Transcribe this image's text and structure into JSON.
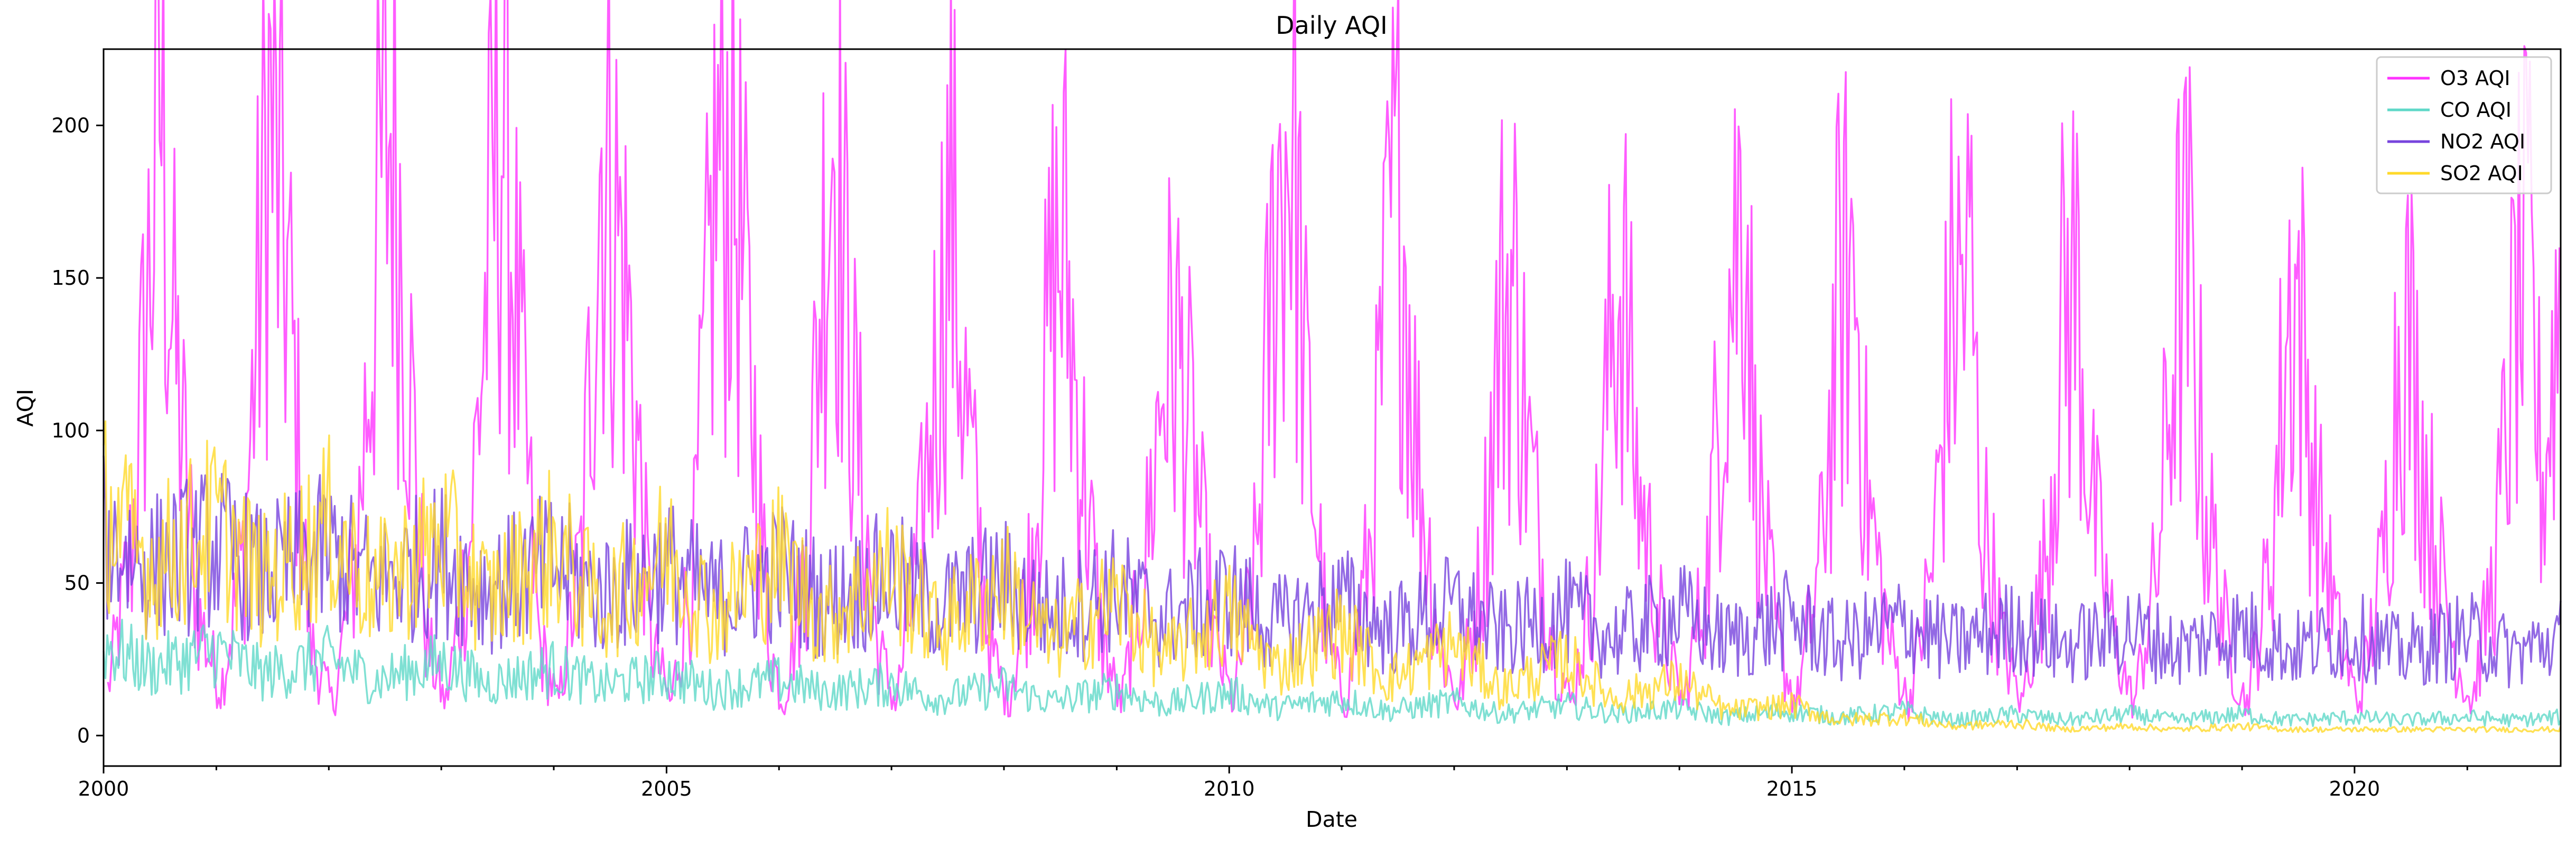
{
  "chart_data": {
    "type": "line",
    "title": "Daily AQI",
    "xlabel": "Date",
    "ylabel": "AQI",
    "xlim": [
      "2000-01-01",
      "2021-10-31"
    ],
    "ylim": [
      -10,
      225
    ],
    "x_ticks": [
      "2000",
      "2005",
      "2010",
      "2015",
      "2020"
    ],
    "y_ticks": [
      "0",
      "50",
      "100",
      "150",
      "200"
    ],
    "legend_position": "top-right",
    "grid": false,
    "series": [
      {
        "name": "O3 AQI",
        "color": "#ff33ff",
        "x": [
          "2000-01-15",
          "2000-04-01",
          "2000-06-10",
          "2000-07-01",
          "2000-08-15",
          "2000-11-01",
          "2001-01-15",
          "2001-04-01",
          "2001-06-20",
          "2001-07-15",
          "2001-08-20",
          "2001-11-01",
          "2002-01-15",
          "2002-04-01",
          "2002-06-15",
          "2002-07-25",
          "2002-09-01",
          "2002-11-15",
          "2003-01-15",
          "2003-04-01",
          "2003-06-20",
          "2003-07-20",
          "2003-09-01",
          "2003-11-15",
          "2004-01-15",
          "2004-04-01",
          "2004-06-01",
          "2004-07-15",
          "2004-09-01",
          "2004-11-15",
          "2005-01-15",
          "2005-04-01",
          "2005-06-10",
          "2005-08-01",
          "2005-09-15",
          "2005-12-01",
          "2006-01-15",
          "2006-04-01",
          "2006-06-01",
          "2006-06-25",
          "2006-09-01",
          "2006-11-15",
          "2007-01-15",
          "2007-04-01",
          "2007-06-15",
          "2007-07-10",
          "2007-09-01",
          "2007-11-15",
          "2008-01-15",
          "2008-04-01",
          "2008-06-10",
          "2008-07-15",
          "2008-09-01",
          "2008-11-15",
          "2009-01-15",
          "2009-04-01",
          "2009-06-01",
          "2009-07-15",
          "2009-09-01",
          "2009-11-15",
          "2010-01-15",
          "2010-04-01",
          "2010-06-01",
          "2010-07-25",
          "2010-09-01",
          "2010-11-15",
          "2011-01-15",
          "2011-04-01",
          "2011-06-10",
          "2011-07-15",
          "2011-09-01",
          "2011-11-15",
          "2012-01-15",
          "2012-04-01",
          "2012-06-01",
          "2012-07-15",
          "2012-09-01",
          "2012-11-15",
          "2013-01-15",
          "2013-04-01",
          "2013-06-01",
          "2013-07-01",
          "2013-08-15",
          "2013-11-15",
          "2014-01-15",
          "2014-04-01",
          "2014-06-01",
          "2014-08-05",
          "2014-09-01",
          "2014-11-15",
          "2015-01-15",
          "2015-04-01",
          "2015-06-01",
          "2015-07-25",
          "2015-09-01",
          "2015-11-15",
          "2016-01-15",
          "2016-04-01",
          "2016-06-01",
          "2016-08-05",
          "2016-09-01",
          "2016-11-15",
          "2017-01-15",
          "2017-04-01",
          "2017-06-01",
          "2017-07-15",
          "2017-09-01",
          "2017-11-15",
          "2018-01-15",
          "2018-04-01",
          "2018-06-01",
          "2018-07-15",
          "2018-09-01",
          "2018-11-15",
          "2019-01-15",
          "2019-04-01",
          "2019-06-01",
          "2019-07-01",
          "2019-09-01",
          "2019-11-15",
          "2020-01-15",
          "2020-04-01",
          "2020-06-01",
          "2020-07-10",
          "2020-09-01",
          "2020-11-15",
          "2021-01-15",
          "2021-04-01",
          "2021-06-10",
          "2021-07-20",
          "2021-09-01",
          "2021-10-31"
        ],
        "y": [
          15,
          60,
          172,
          214,
          130,
          40,
          15,
          60,
          205,
          180,
          150,
          30,
          10,
          60,
          175,
          205,
          150,
          30,
          10,
          60,
          180,
          209,
          140,
          30,
          10,
          60,
          195,
          175,
          135,
          30,
          10,
          60,
          185,
          190,
          140,
          30,
          10,
          60,
          175,
          208,
          110,
          30,
          10,
          60,
          145,
          179,
          105,
          30,
          10,
          60,
          150,
          160,
          100,
          30,
          10,
          55,
          120,
          128,
          95,
          30,
          10,
          60,
          170,
          208,
          120,
          30,
          10,
          60,
          165,
          177,
          95,
          30,
          10,
          55,
          140,
          147,
          90,
          30,
          10,
          55,
          140,
          152,
          85,
          30,
          10,
          55,
          140,
          187,
          90,
          30,
          10,
          55,
          140,
          155,
          80,
          30,
          10,
          55,
          140,
          152,
          80,
          30,
          10,
          55,
          140,
          150,
          75,
          30,
          10,
          55,
          140,
          151,
          80,
          30,
          10,
          55,
          140,
          145,
          75,
          30,
          10,
          55,
          140,
          121,
          75,
          30,
          10,
          55,
          140,
          150,
          80,
          150
        ]
      },
      {
        "name": "CO AQI",
        "color": "#5fd8c8",
        "x": [
          "2000-01-01",
          "2000-06-01",
          "2001-01-01",
          "2001-06-01",
          "2002-01-01",
          "2002-06-01",
          "2003-01-01",
          "2003-06-01",
          "2004-01-01",
          "2004-06-01",
          "2005-01-01",
          "2005-06-01",
          "2006-01-01",
          "2006-06-01",
          "2007-01-01",
          "2007-06-01",
          "2008-01-01",
          "2008-06-01",
          "2009-01-01",
          "2009-06-01",
          "2010-01-01",
          "2010-06-01",
          "2011-01-01",
          "2011-06-01",
          "2012-01-01",
          "2012-06-01",
          "2013-01-01",
          "2013-06-01",
          "2014-01-01",
          "2014-06-01",
          "2015-01-01",
          "2015-06-01",
          "2016-01-01",
          "2016-06-01",
          "2017-01-01",
          "2017-06-01",
          "2018-01-01",
          "2018-06-01",
          "2019-01-01",
          "2019-06-01",
          "2020-01-01",
          "2020-06-01",
          "2021-01-01",
          "2021-06-01",
          "2021-10-31"
        ],
        "y": [
          30,
          22,
          28,
          20,
          25,
          18,
          24,
          17,
          22,
          16,
          20,
          15,
          18,
          14,
          17,
          12,
          16,
          11,
          15,
          10,
          14,
          9,
          12,
          8,
          11,
          7,
          10,
          7,
          9,
          6,
          8,
          6,
          8,
          5,
          7,
          5,
          7,
          5,
          7,
          5,
          6,
          5,
          6,
          5,
          6
        ]
      },
      {
        "name": "NO2 AQI",
        "color": "#7744dd",
        "x": [
          "2000-01-01",
          "2000-06-01",
          "2001-01-01",
          "2001-06-01",
          "2002-01-01",
          "2002-06-01",
          "2003-01-01",
          "2003-06-01",
          "2004-01-01",
          "2004-06-01",
          "2005-01-01",
          "2005-06-01",
          "2006-01-01",
          "2006-06-01",
          "2007-01-01",
          "2007-06-01",
          "2008-01-01",
          "2008-06-01",
          "2009-01-01",
          "2009-06-01",
          "2010-01-01",
          "2010-06-01",
          "2011-01-01",
          "2011-06-01",
          "2012-01-01",
          "2012-06-01",
          "2013-01-01",
          "2013-06-01",
          "2014-01-01",
          "2014-06-01",
          "2015-01-01",
          "2015-06-01",
          "2016-01-01",
          "2016-06-01",
          "2017-01-01",
          "2017-06-01",
          "2018-01-01",
          "2018-06-01",
          "2019-01-01",
          "2019-06-01",
          "2020-01-01",
          "2020-06-01",
          "2021-01-01",
          "2021-06-01",
          "2021-10-31"
        ],
        "y": [
          65,
          55,
          62,
          52,
          60,
          50,
          58,
          48,
          56,
          46,
          55,
          45,
          54,
          44,
          52,
          42,
          50,
          40,
          48,
          38,
          46,
          36,
          44,
          34,
          42,
          33,
          40,
          32,
          40,
          31,
          38,
          30,
          37,
          30,
          36,
          29,
          35,
          28,
          35,
          28,
          33,
          27,
          33,
          27,
          32
        ]
      },
      {
        "name": "SO2 AQI",
        "color": "#ffd92a",
        "x": [
          "2000-01-01",
          "2000-06-01",
          "2001-01-01",
          "2001-06-01",
          "2002-01-01",
          "2002-06-01",
          "2003-01-01",
          "2003-06-01",
          "2004-01-01",
          "2004-06-01",
          "2005-01-01",
          "2005-06-01",
          "2006-01-01",
          "2006-06-01",
          "2007-01-01",
          "2007-06-01",
          "2008-01-01",
          "2008-06-01",
          "2009-01-01",
          "2009-06-01",
          "2010-01-01",
          "2010-06-01",
          "2011-01-01",
          "2011-06-01",
          "2012-01-01",
          "2012-06-01",
          "2013-01-01",
          "2013-06-01",
          "2014-01-01",
          "2014-06-01",
          "2015-01-01",
          "2015-06-01",
          "2016-01-01",
          "2016-06-01",
          "2017-01-01",
          "2017-06-01",
          "2018-01-01",
          "2018-06-01",
          "2019-01-01",
          "2019-06-01",
          "2020-01-01",
          "2020-06-01",
          "2021-01-01",
          "2021-06-01",
          "2021-10-31"
        ],
        "y": [
          75,
          55,
          70,
          50,
          68,
          48,
          65,
          45,
          62,
          42,
          60,
          40,
          58,
          38,
          55,
          35,
          50,
          30,
          45,
          25,
          40,
          22,
          35,
          18,
          30,
          15,
          25,
          12,
          18,
          8,
          10,
          5,
          6,
          3,
          4,
          2,
          3,
          2,
          3,
          2,
          2,
          2,
          2,
          2,
          2
        ]
      }
    ]
  }
}
